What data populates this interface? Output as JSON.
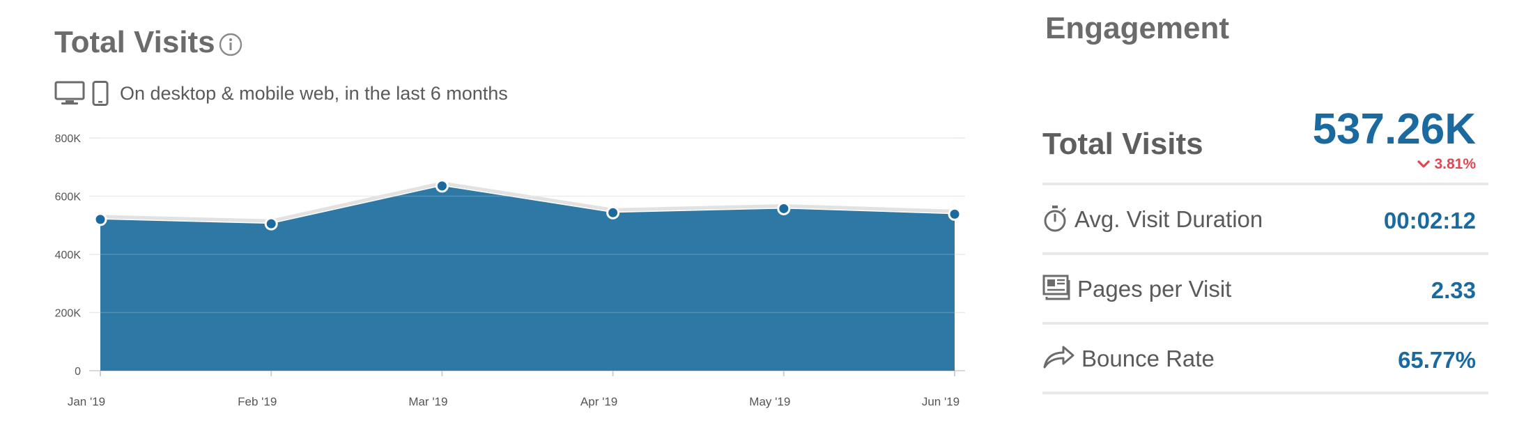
{
  "header": {
    "title": "Total Visits",
    "subtitle": "On desktop & mobile web, in the last 6 months"
  },
  "chart_data": {
    "type": "area",
    "title": "Total Visits",
    "categories": [
      "Jan '19",
      "Feb '19",
      "Mar '19",
      "Apr '19",
      "May '19",
      "Jun '19"
    ],
    "values": [
      520000,
      505000,
      635000,
      543000,
      557000,
      538000
    ],
    "ylim": [
      0,
      800000
    ],
    "y_ticks": [
      0,
      200000,
      400000,
      600000,
      800000
    ],
    "y_tick_labels": [
      "0",
      "200K",
      "400K",
      "600K",
      "800K"
    ],
    "grid": true,
    "legend": "none",
    "colors": {
      "area": "#2e78a6",
      "marker": "#1a6aa0",
      "shadow": "#e2e2e2",
      "grid": "#e9e9e9"
    }
  },
  "engagement": {
    "title": "Engagement",
    "total_visits": {
      "label": "Total Visits",
      "value": "537.26K",
      "change": "3.81%",
      "change_direction": "down",
      "change_color": "#e5454f"
    },
    "metrics": [
      {
        "label": "Avg. Visit Duration",
        "value": "00:02:12",
        "icon": "stopwatch-icon"
      },
      {
        "label": "Pages per Visit",
        "value": "2.33",
        "icon": "pages-icon"
      },
      {
        "label": "Bounce Rate",
        "value": "65.77%",
        "icon": "bounce-arrow-icon"
      }
    ],
    "value_color": "#1a6aa0"
  }
}
